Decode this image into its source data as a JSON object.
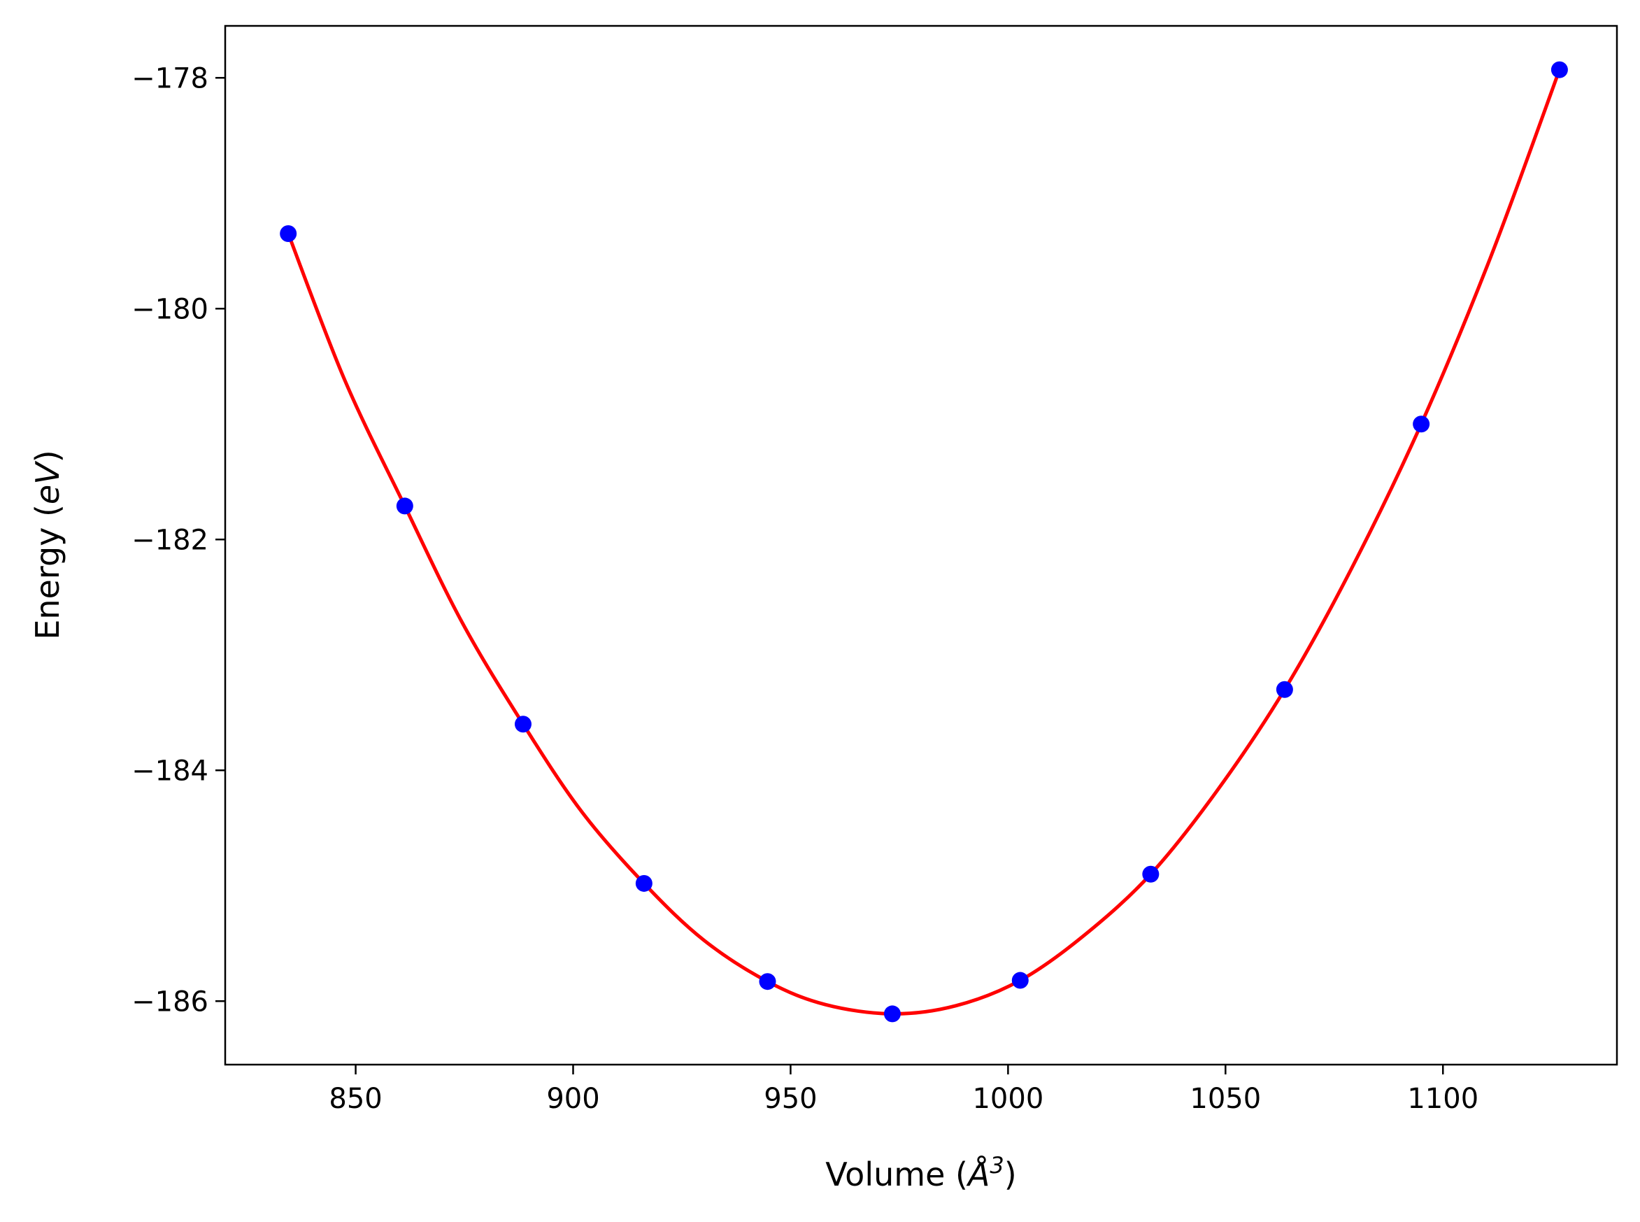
{
  "chart_data": {
    "type": "scatter",
    "title": "",
    "xlabel_parts": [
      "Volume (",
      "Å",
      "3",
      ")"
    ],
    "ylabel_parts": [
      "Energy (",
      "eV",
      ")"
    ],
    "xlim": [
      820,
      1140
    ],
    "ylim": [
      -186.55,
      -177.55
    ],
    "xticks": [
      850,
      900,
      950,
      1000,
      1050,
      1100
    ],
    "xtick_labels": [
      "850",
      "900",
      "950",
      "1000",
      "1050",
      "1100"
    ],
    "yticks": [
      -178,
      -180,
      -182,
      -184,
      -186
    ],
    "ytick_labels": [
      "−178",
      "−180",
      "−182",
      "−184",
      "−186"
    ],
    "grid": false,
    "series": [
      {
        "kind": "points",
        "color": "#0000ff",
        "x": [
          834.5,
          861.3,
          888.5,
          916.3,
          944.7,
          973.4,
          1002.8,
          1032.8,
          1063.6,
          1095.0,
          1126.8
        ],
        "y": [
          -179.35,
          -181.71,
          -183.6,
          -184.98,
          -185.83,
          -186.11,
          -185.82,
          -184.9,
          -183.3,
          -181.0,
          -177.93
        ]
      },
      {
        "kind": "fit-curve",
        "color": "#ff0000",
        "x": [
          834.5,
          847.5,
          861.3,
          874.5,
          888.5,
          902.0,
          916.3,
          930.0,
          944.7,
          958.0,
          973.4,
          988.0,
          1002.8,
          1017.5,
          1032.8,
          1048.0,
          1063.6,
          1079.0,
          1095.0,
          1111.0,
          1126.8
        ],
        "y": [
          -179.35,
          -180.62,
          -181.71,
          -182.72,
          -183.6,
          -184.36,
          -184.98,
          -185.47,
          -185.83,
          -186.03,
          -186.11,
          -186.04,
          -185.82,
          -185.43,
          -184.9,
          -184.18,
          -183.3,
          -182.25,
          -181.0,
          -179.55,
          -177.93
        ]
      }
    ]
  }
}
